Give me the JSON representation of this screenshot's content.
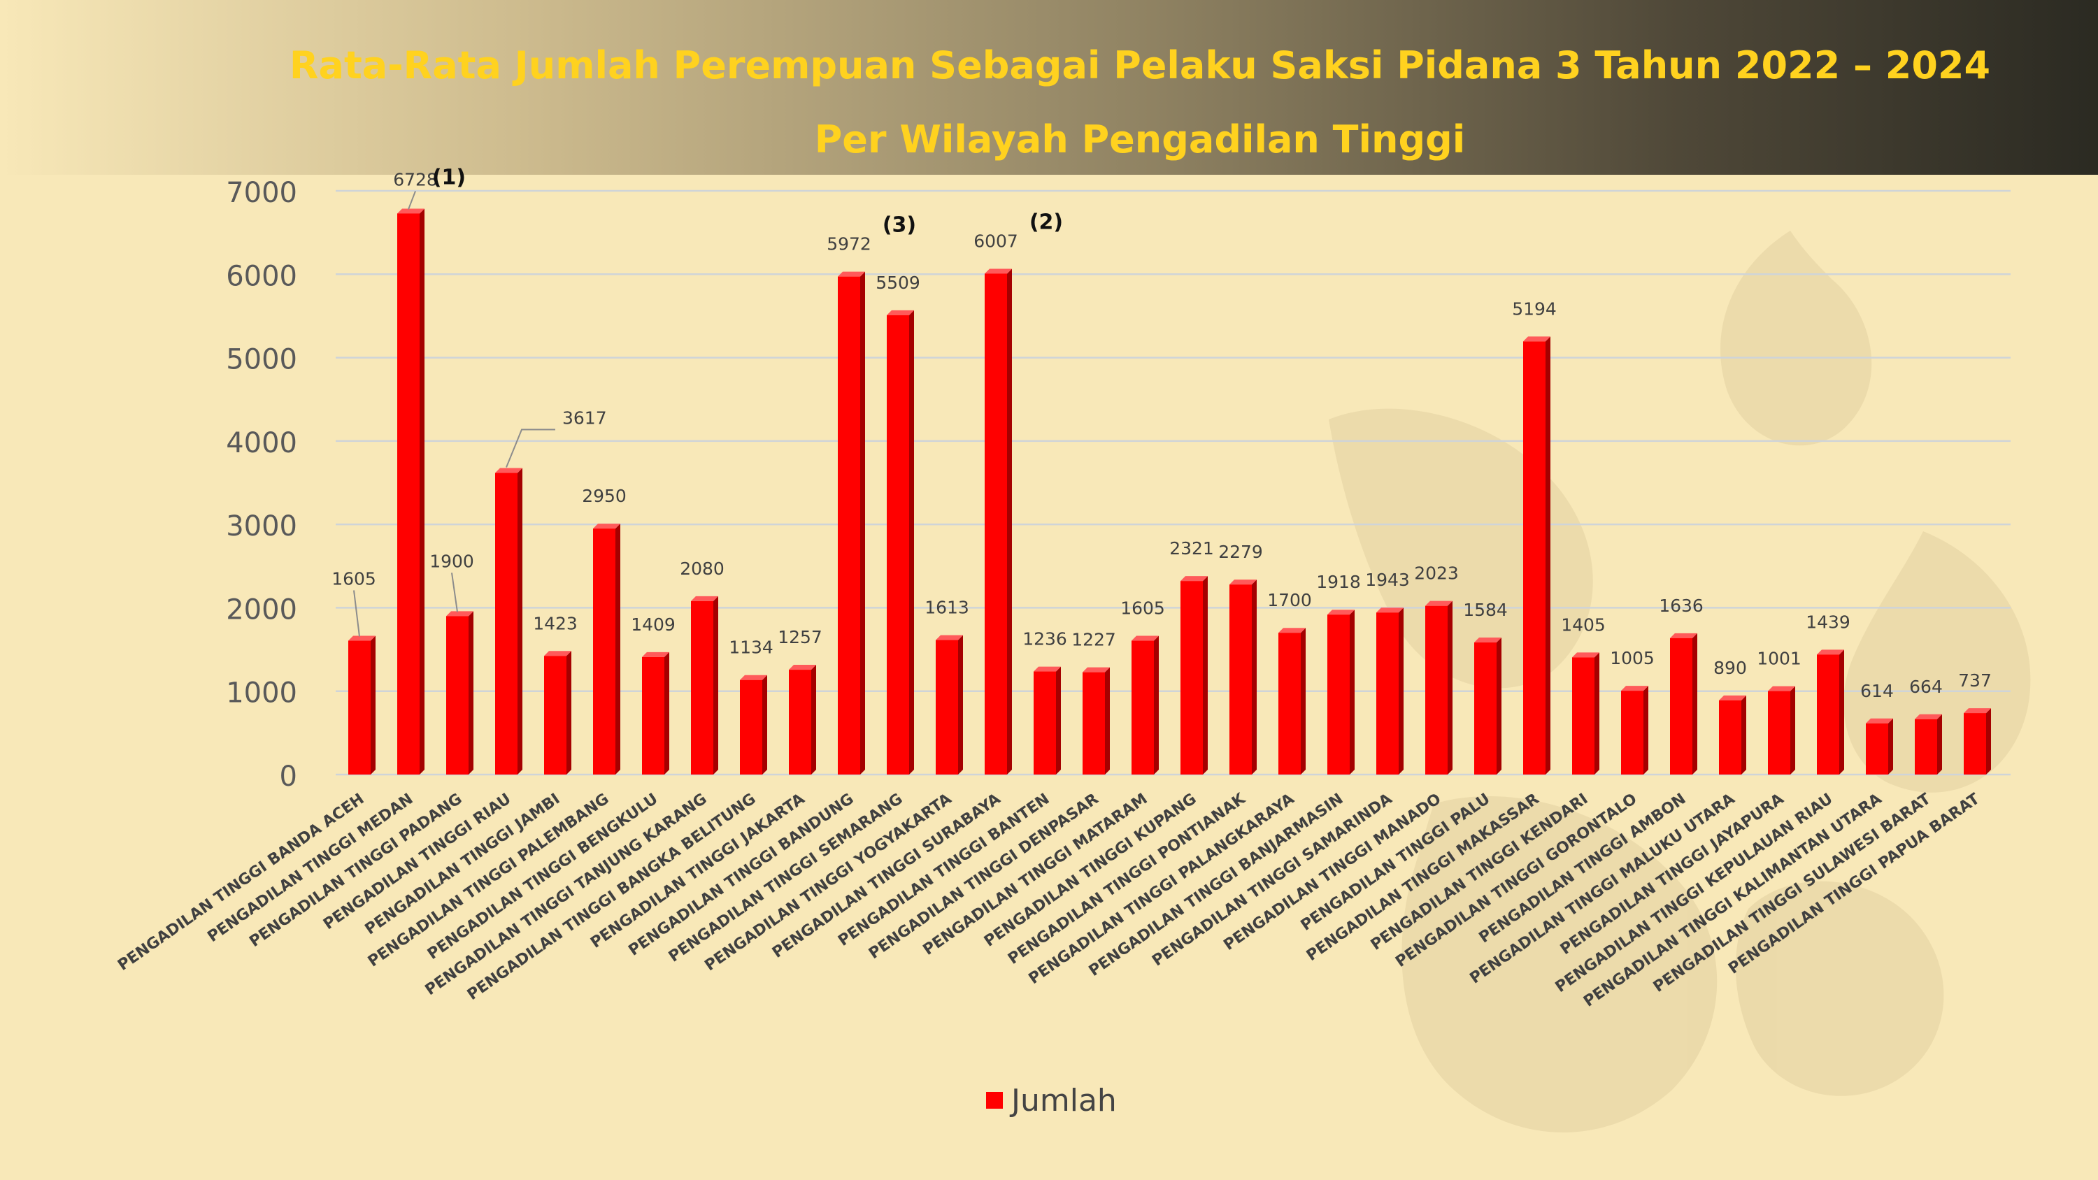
{
  "title": {
    "line1": "Rata-Rata Jumlah Perempuan Sebagai Pelaku Saksi Pidana 3 Tahun 2022 – 2024",
    "line2": "Per Wilayah Pengadilan Tinggi"
  },
  "colors": {
    "title": "#ffd21f",
    "bar": "#ff0000",
    "background": "#f8e8b8"
  },
  "chart_data": {
    "type": "bar",
    "categories": [
      "PENGADILAN TINGGI BANDA ACEH",
      "PENGADILAN TINGGI MEDAN",
      "PENGADILAN TINGGI PADANG",
      "PENGADILAN TINGGI RIAU",
      "PENGADILAN TINGGI JAMBI",
      "PENGADILAN TINGGI PALEMBANG",
      "PENGADILAN TINGGI BENGKULU",
      "PENGADILAN TINGGI TANJUNG KARANG",
      "PENGADILAN TINGGI BANGKA BELITUNG",
      "PENGADILAN TINGGI JAKARTA",
      "PENGADILAN TINGGI BANDUNG",
      "PENGADILAN TINGGI SEMARANG",
      "PENGADILAN TINGGI YOGYAKARTA",
      "PENGADILAN TINGGI SURABAYA",
      "PENGADILAN TINGGI BANTEN",
      "PENGADILAN TINGGI DENPASAR",
      "PENGADILAN TINGGI MATARAM",
      "PENGADILAN TINGGI KUPANG",
      "PENGADILAN TINGGI PONTIANAK",
      "PENGADILAN TINGGI PALANGKARAYA",
      "PENGADILAN TINGGI BANJARMASIN",
      "PENGADILAN TINGGI SAMARINDA",
      "PENGADILAN TINGGI MANADO",
      "PENGADILAN TINGGI PALU",
      "PENGADILAN TINGGI MAKASSAR",
      "PENGADILAN TINGGI KENDARI",
      "PENGADILAN TINGGI GORONTALO",
      "PENGADILAN TINGGI AMBON",
      "PENGADILAN TINGGI MALUKU UTARA",
      "PENGADILAN TINGGI JAYAPURA",
      "PENGADILAN TINGGI KEPULAUAN RIAU",
      "PENGADILAN TINGGI KALIMANTAN UTARA",
      "PENGADILAN TINGGI SULAWESI BARAT",
      "PENGADILAN TINGGI PAPUA BARAT"
    ],
    "series": [
      {
        "name": "Jumlah",
        "values": [
          1605,
          6728,
          1900,
          3617,
          1423,
          2950,
          1409,
          2080,
          1134,
          1257,
          5972,
          5509,
          1613,
          6007,
          1236,
          1227,
          1605,
          2321,
          2279,
          1700,
          1918,
          1943,
          2023,
          1584,
          5194,
          1405,
          1005,
          1636,
          890,
          1001,
          1439,
          614,
          664,
          737
        ]
      }
    ],
    "ylim": [
      0,
      7000
    ],
    "yticks": [
      0,
      1000,
      2000,
      3000,
      4000,
      5000,
      6000,
      7000
    ],
    "grid": true,
    "legend": "bottom",
    "annotations": [
      {
        "category_index": 1,
        "text": "(1)"
      },
      {
        "category_index": 13,
        "text": "(2)"
      },
      {
        "category_index": 10,
        "text": "(3)"
      }
    ]
  }
}
